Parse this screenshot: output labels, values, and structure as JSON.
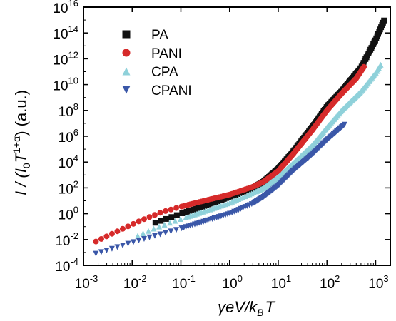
{
  "chart_data": {
    "type": "scatter",
    "x_scale": "log",
    "y_scale": "log",
    "xlim": [
      0.001,
      2000
    ],
    "ylim": [
      0.0001,
      1e+16
    ],
    "x_ticks": [
      {
        "value": 0.001,
        "base": "10",
        "exp": "-3"
      },
      {
        "value": 0.01,
        "base": "10",
        "exp": "-2"
      },
      {
        "value": 0.1,
        "base": "10",
        "exp": "-1"
      },
      {
        "value": 1,
        "base": "10",
        "exp": "0"
      },
      {
        "value": 10,
        "base": "10",
        "exp": "1"
      },
      {
        "value": 100,
        "base": "10",
        "exp": "2"
      },
      {
        "value": 1000,
        "base": "10",
        "exp": "3"
      }
    ],
    "y_ticks": [
      {
        "value": 0.0001,
        "base": "10",
        "exp": "-4"
      },
      {
        "value": 0.01,
        "base": "10",
        "exp": "-2"
      },
      {
        "value": 1,
        "base": "10",
        "exp": "0"
      },
      {
        "value": 100.0,
        "base": "10",
        "exp": "2"
      },
      {
        "value": 10000.0,
        "base": "10",
        "exp": "4"
      },
      {
        "value": 1000000.0,
        "base": "10",
        "exp": "6"
      },
      {
        "value": 100000000.0,
        "base": "10",
        "exp": "8"
      },
      {
        "value": 10000000000.0,
        "base": "10",
        "exp": "10"
      },
      {
        "value": 1000000000000.0,
        "base": "10",
        "exp": "12"
      },
      {
        "value": 100000000000000.0,
        "base": "10",
        "exp": "14"
      },
      {
        "value": 1e+16,
        "base": "10",
        "exp": "16"
      }
    ],
    "xlabel": {
      "gamma": "γ",
      "eV": "eV/",
      "k": "k",
      "B": "B",
      "T": "T"
    },
    "ylabel": {
      "prefix": "I / (I",
      "sub": "0",
      "T": "T",
      "sup": "1+α",
      "suffix": ") (a.u.)"
    },
    "legend_position": "top-left",
    "grid": false,
    "series": [
      {
        "name": "PA",
        "marker": "square",
        "color": "#111111",
        "points": [
          [
            0.03,
            0.2
          ],
          [
            0.1,
            1
          ],
          [
            0.3,
            4
          ],
          [
            1,
            20
          ],
          [
            3,
            100
          ],
          [
            5,
            300
          ],
          [
            10,
            3000
          ],
          [
            20,
            60000
          ],
          [
            50,
            5000000
          ],
          [
            100,
            200000000
          ],
          [
            200,
            3000000000
          ],
          [
            500,
            200000000000
          ],
          [
            1000,
            30000000000000
          ],
          [
            1500,
            1000000000000000
          ]
        ]
      },
      {
        "name": "PANI",
        "marker": "circle",
        "color": "#d62a2a",
        "points": [
          [
            0.0018,
            0.007
          ],
          [
            0.004,
            0.03
          ],
          [
            0.008,
            0.1
          ],
          [
            0.015,
            0.3
          ],
          [
            0.04,
            1.3
          ],
          [
            0.1,
            3.5
          ],
          [
            0.3,
            10
          ],
          [
            1,
            30
          ],
          [
            3,
            120
          ],
          [
            5,
            300
          ],
          [
            10,
            2000
          ],
          [
            20,
            40000
          ],
          [
            50,
            3000000
          ],
          [
            100,
            100000000
          ],
          [
            200,
            2000000000
          ],
          [
            400,
            30000000000
          ],
          [
            600,
            300000000000
          ]
        ]
      },
      {
        "name": "CPA",
        "marker": "triangle-up",
        "color": "#8fd1da",
        "points": [
          [
            0.013,
            0.02
          ],
          [
            0.03,
            0.08
          ],
          [
            0.1,
            0.4
          ],
          [
            0.3,
            1.5
          ],
          [
            1,
            7
          ],
          [
            3,
            40
          ],
          [
            5,
            100
          ],
          [
            10,
            700
          ],
          [
            20,
            8000
          ],
          [
            50,
            200000
          ],
          [
            100,
            5000000
          ],
          [
            200,
            100000000
          ],
          [
            500,
            3000000000
          ],
          [
            1000,
            80000000000
          ],
          [
            1300,
            400000000000
          ]
        ]
      },
      {
        "name": "CPANI",
        "marker": "triangle-down",
        "color": "#3a57a8",
        "points": [
          [
            0.0018,
            0.0008
          ],
          [
            0.004,
            0.002
          ],
          [
            0.01,
            0.006
          ],
          [
            0.03,
            0.02
          ],
          [
            0.1,
            0.07
          ],
          [
            0.3,
            0.25
          ],
          [
            1,
            1
          ],
          [
            3,
            6
          ],
          [
            5,
            20
          ],
          [
            10,
            150
          ],
          [
            20,
            2000
          ],
          [
            50,
            40000
          ],
          [
            100,
            500000
          ],
          [
            200,
            5000000
          ],
          [
            230,
            8000000
          ]
        ]
      }
    ]
  }
}
